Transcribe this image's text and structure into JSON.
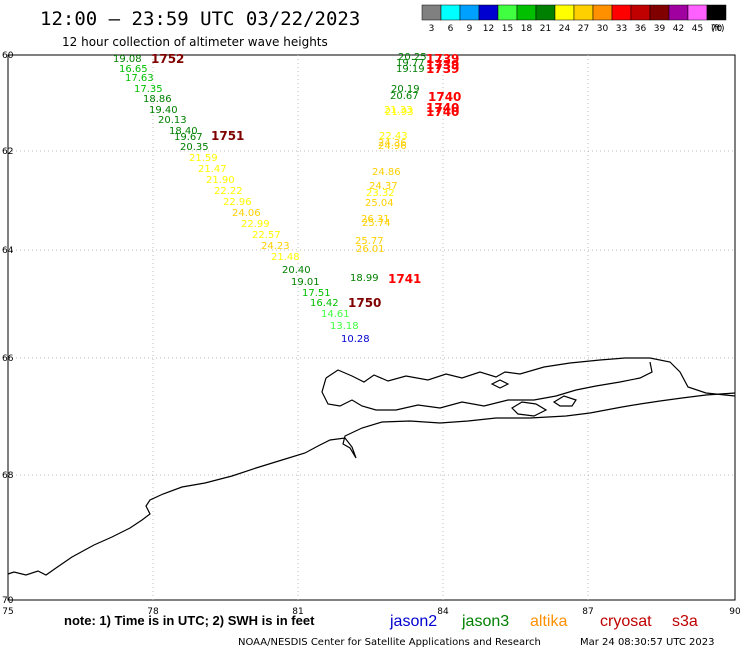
{
  "header": {
    "title": "12:00 – 23:59 UTC 03/22/2023",
    "subtitle": "12 hour collection of altimeter wave heights"
  },
  "legend": {
    "steps": [
      {
        "label": "3",
        "color": "#808080"
      },
      {
        "label": "6",
        "color": "#00ffff"
      },
      {
        "label": "9",
        "color": "#00a0ff"
      },
      {
        "label": "12",
        "color": "#0000d0"
      },
      {
        "label": "15",
        "color": "#40ff40"
      },
      {
        "label": "18",
        "color": "#00c000"
      },
      {
        "label": "21",
        "color": "#008000"
      },
      {
        "label": "24",
        "color": "#ffff00"
      },
      {
        "label": "27",
        "color": "#ffd000"
      },
      {
        "label": "30",
        "color": "#ff9000"
      },
      {
        "label": "33",
        "color": "#ff0000"
      },
      {
        "label": "36",
        "color": "#c00000"
      },
      {
        "label": "39",
        "color": "#800000"
      },
      {
        "label": "42",
        "color": "#a000a0"
      },
      {
        "label": "45",
        "color": "#ff60ff"
      },
      {
        "label": "70",
        "color": "#000000"
      }
    ],
    "unit": "(ft)"
  },
  "axes": {
    "lat_labels": [
      "60",
      "62",
      "64",
      "66",
      "68",
      "70"
    ],
    "lon_labels": [
      "75",
      "78",
      "81",
      "84",
      "87",
      "90"
    ]
  },
  "footer": {
    "note": "note:  1) Time is in UTC;  2) SWH is in feet",
    "missions": [
      {
        "name": "jason2",
        "color": "#0000d0"
      },
      {
        "name": "jason3",
        "color": "#008000"
      },
      {
        "name": "altika",
        "color": "#ff9000"
      },
      {
        "name": "cryosat",
        "color": "#c00000"
      },
      {
        "name": "s3a",
        "color": "#c00000"
      }
    ],
    "credit": "NOAA/NESDIS Center for Satellite Applications and Research",
    "timestamp": "Mar 24 08:30:57 UTC 2023"
  },
  "pass_times": [
    {
      "text": "1752",
      "color": "#800000"
    },
    {
      "text": "1751",
      "color": "#800000"
    },
    {
      "text": "1750",
      "color": "#800000"
    },
    {
      "text": "1739",
      "color": "#ff0000"
    },
    {
      "text": "1739",
      "color": "#ff0000"
    },
    {
      "text": "1739",
      "color": "#ff0000"
    },
    {
      "text": "1740",
      "color": "#ff0000"
    },
    {
      "text": "1740",
      "color": "#ff0000"
    },
    {
      "text": "1740",
      "color": "#ff0000"
    },
    {
      "text": "1741",
      "color": "#ff0000"
    }
  ],
  "track_west": [
    {
      "v": "19.08",
      "c": "#008000"
    },
    {
      "v": "16.65",
      "c": "#00c000"
    },
    {
      "v": "17.63",
      "c": "#00c000"
    },
    {
      "v": "17.35",
      "c": "#00c000"
    },
    {
      "v": "18.86",
      "c": "#008000"
    },
    {
      "v": "19.40",
      "c": "#008000"
    },
    {
      "v": "20.13",
      "c": "#008000"
    },
    {
      "v": "18.40",
      "c": "#008000"
    },
    {
      "v": "19.67",
      "c": "#008000"
    },
    {
      "v": "20.35",
      "c": "#008000"
    },
    {
      "v": "21.59",
      "c": "#ffff00"
    },
    {
      "v": "21.47",
      "c": "#ffff00"
    },
    {
      "v": "21.90",
      "c": "#ffff00"
    },
    {
      "v": "22.22",
      "c": "#ffff00"
    },
    {
      "v": "22.96",
      "c": "#ffff00"
    },
    {
      "v": "24.06",
      "c": "#ffd000"
    },
    {
      "v": "22.99",
      "c": "#ffff00"
    },
    {
      "v": "22.57",
      "c": "#ffff00"
    },
    {
      "v": "24.23",
      "c": "#ffd000"
    },
    {
      "v": "21.48",
      "c": "#ffff00"
    },
    {
      "v": "20.40",
      "c": "#008000"
    },
    {
      "v": "19.01",
      "c": "#008000"
    },
    {
      "v": "17.51",
      "c": "#00c000"
    },
    {
      "v": "16.42",
      "c": "#00c000"
    },
    {
      "v": "14.61",
      "c": "#40ff40"
    },
    {
      "v": "13.18",
      "c": "#40ff40"
    },
    {
      "v": "10.28",
      "c": "#0000d0"
    }
  ],
  "track_east": [
    {
      "v": "20.25",
      "c": "#008000"
    },
    {
      "v": "19.77",
      "c": "#008000"
    },
    {
      "v": "19.19",
      "c": "#008000"
    },
    {
      "v": "20.19",
      "c": "#008000"
    },
    {
      "v": "20.67",
      "c": "#008000"
    },
    {
      "v": "21.33",
      "c": "#ffff00"
    },
    {
      "v": "21.93",
      "c": "#ffff00"
    },
    {
      "v": "22.43",
      "c": "#ffff00"
    },
    {
      "v": "24.36",
      "c": "#ffd000"
    },
    {
      "v": "24.96",
      "c": "#ffd000"
    },
    {
      "v": "24.86",
      "c": "#ffd000"
    },
    {
      "v": "24.37",
      "c": "#ffd000"
    },
    {
      "v": "23.32",
      "c": "#ffff00"
    },
    {
      "v": "25.04",
      "c": "#ffd000"
    },
    {
      "v": "26.31",
      "c": "#ffd000"
    },
    {
      "v": "25.74",
      "c": "#ffd000"
    },
    {
      "v": "25.77",
      "c": "#ffd000"
    },
    {
      "v": "26.01",
      "c": "#ffd000"
    },
    {
      "v": "18.99",
      "c": "#008000"
    }
  ]
}
